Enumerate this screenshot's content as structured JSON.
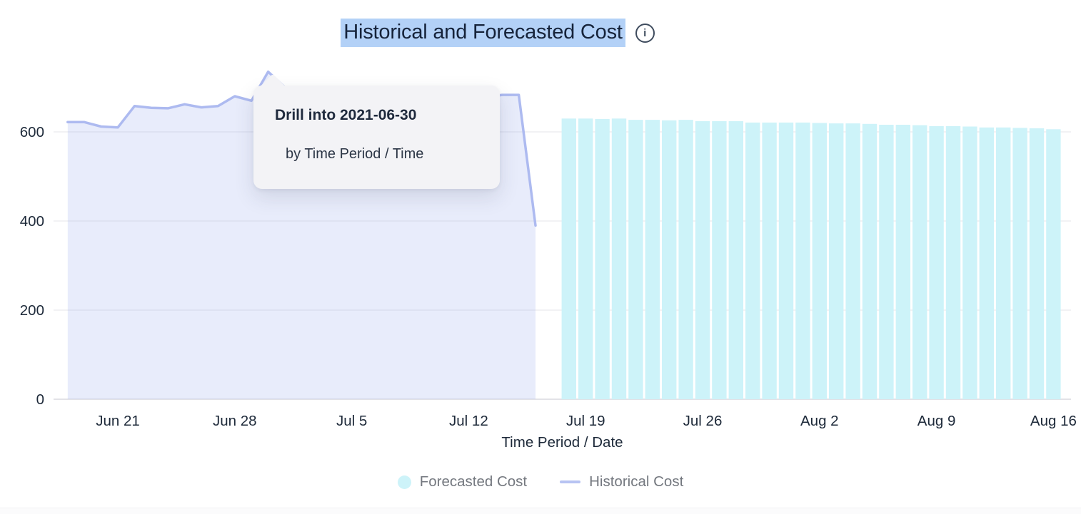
{
  "header": {
    "title": "Historical and Forecasted Cost",
    "title_highlight_color": "#b3d1f7"
  },
  "icons": {
    "info": "i"
  },
  "tooltip": {
    "title": "Drill into 2021-06-30",
    "subtitle": "by Time Period / Time"
  },
  "axes": {
    "x_label": "Time Period / Date"
  },
  "legend": {
    "items": [
      {
        "label": "Forecasted Cost",
        "swatch": "circle",
        "color": "#cdf3f9"
      },
      {
        "label": "Historical Cost",
        "swatch": "line",
        "color": "#b7c3f2"
      }
    ]
  },
  "colors": {
    "axis_text": "#1d2939",
    "legend_text": "#74787f",
    "gridline": "#ededf0",
    "zero_line": "#e2e2e7",
    "historical_line": "#adbaf0",
    "historical_fill": "rgba(173,186,240,0.28)",
    "forecast_bar": "#cdf3f9"
  },
  "chart_data": {
    "type": "mixed",
    "title": "Historical and Forecasted Cost",
    "xlabel": "Time Period / Date",
    "ylabel": "",
    "grid": true,
    "legend_position": "bottom",
    "ylim": [
      0,
      750
    ],
    "y_ticks": [
      0,
      200,
      400,
      600
    ],
    "x_ticks": [
      {
        "label": "Jun 21",
        "date": "2021-06-21"
      },
      {
        "label": "Jun 28",
        "date": "2021-06-28"
      },
      {
        "label": "Jul 5",
        "date": "2021-07-05"
      },
      {
        "label": "Jul 12",
        "date": "2021-07-12"
      },
      {
        "label": "Jul 19",
        "date": "2021-07-19"
      },
      {
        "label": "Jul 26",
        "date": "2021-07-26"
      },
      {
        "label": "Aug 2",
        "date": "2021-08-02"
      },
      {
        "label": "Aug 9",
        "date": "2021-08-09"
      },
      {
        "label": "Aug 16",
        "date": "2021-08-16"
      }
    ],
    "x_range_dates": [
      "2021-06-18",
      "2021-08-16"
    ],
    "hovered_point": {
      "series": "Historical Cost",
      "date": "2021-06-30",
      "value": 735
    },
    "series": [
      {
        "name": "Historical Cost",
        "type": "area",
        "dates": [
          "2021-06-18",
          "2021-06-19",
          "2021-06-20",
          "2021-06-21",
          "2021-06-22",
          "2021-06-23",
          "2021-06-24",
          "2021-06-25",
          "2021-06-26",
          "2021-06-27",
          "2021-06-28",
          "2021-06-29",
          "2021-06-30",
          "2021-07-01",
          "2021-07-02",
          "2021-07-03",
          "2021-07-04",
          "2021-07-05",
          "2021-07-06",
          "2021-07-07",
          "2021-07-08",
          "2021-07-09",
          "2021-07-10",
          "2021-07-11",
          "2021-07-12",
          "2021-07-13",
          "2021-07-14",
          "2021-07-15",
          "2021-07-16"
        ],
        "values": [
          622,
          622,
          612,
          610,
          658,
          654,
          653,
          662,
          655,
          658,
          680,
          670,
          735,
          700,
          685,
          675,
          670,
          668,
          672,
          670,
          668,
          672,
          675,
          670,
          673,
          678,
          683,
          683,
          390
        ]
      },
      {
        "name": "Forecasted Cost",
        "type": "bar",
        "dates": [
          "2021-07-18",
          "2021-07-19",
          "2021-07-20",
          "2021-07-21",
          "2021-07-22",
          "2021-07-23",
          "2021-07-24",
          "2021-07-25",
          "2021-07-26",
          "2021-07-27",
          "2021-07-28",
          "2021-07-29",
          "2021-07-30",
          "2021-07-31",
          "2021-08-01",
          "2021-08-02",
          "2021-08-03",
          "2021-08-04",
          "2021-08-05",
          "2021-08-06",
          "2021-08-07",
          "2021-08-08",
          "2021-08-09",
          "2021-08-10",
          "2021-08-11",
          "2021-08-12",
          "2021-08-13",
          "2021-08-14",
          "2021-08-15",
          "2021-08-16"
        ],
        "values": [
          630,
          630,
          629,
          630,
          627,
          627,
          626,
          627,
          624,
          624,
          624,
          621,
          621,
          621,
          621,
          620,
          619,
          619,
          618,
          616,
          616,
          615,
          613,
          613,
          612,
          610,
          610,
          609,
          608,
          606
        ]
      }
    ]
  }
}
